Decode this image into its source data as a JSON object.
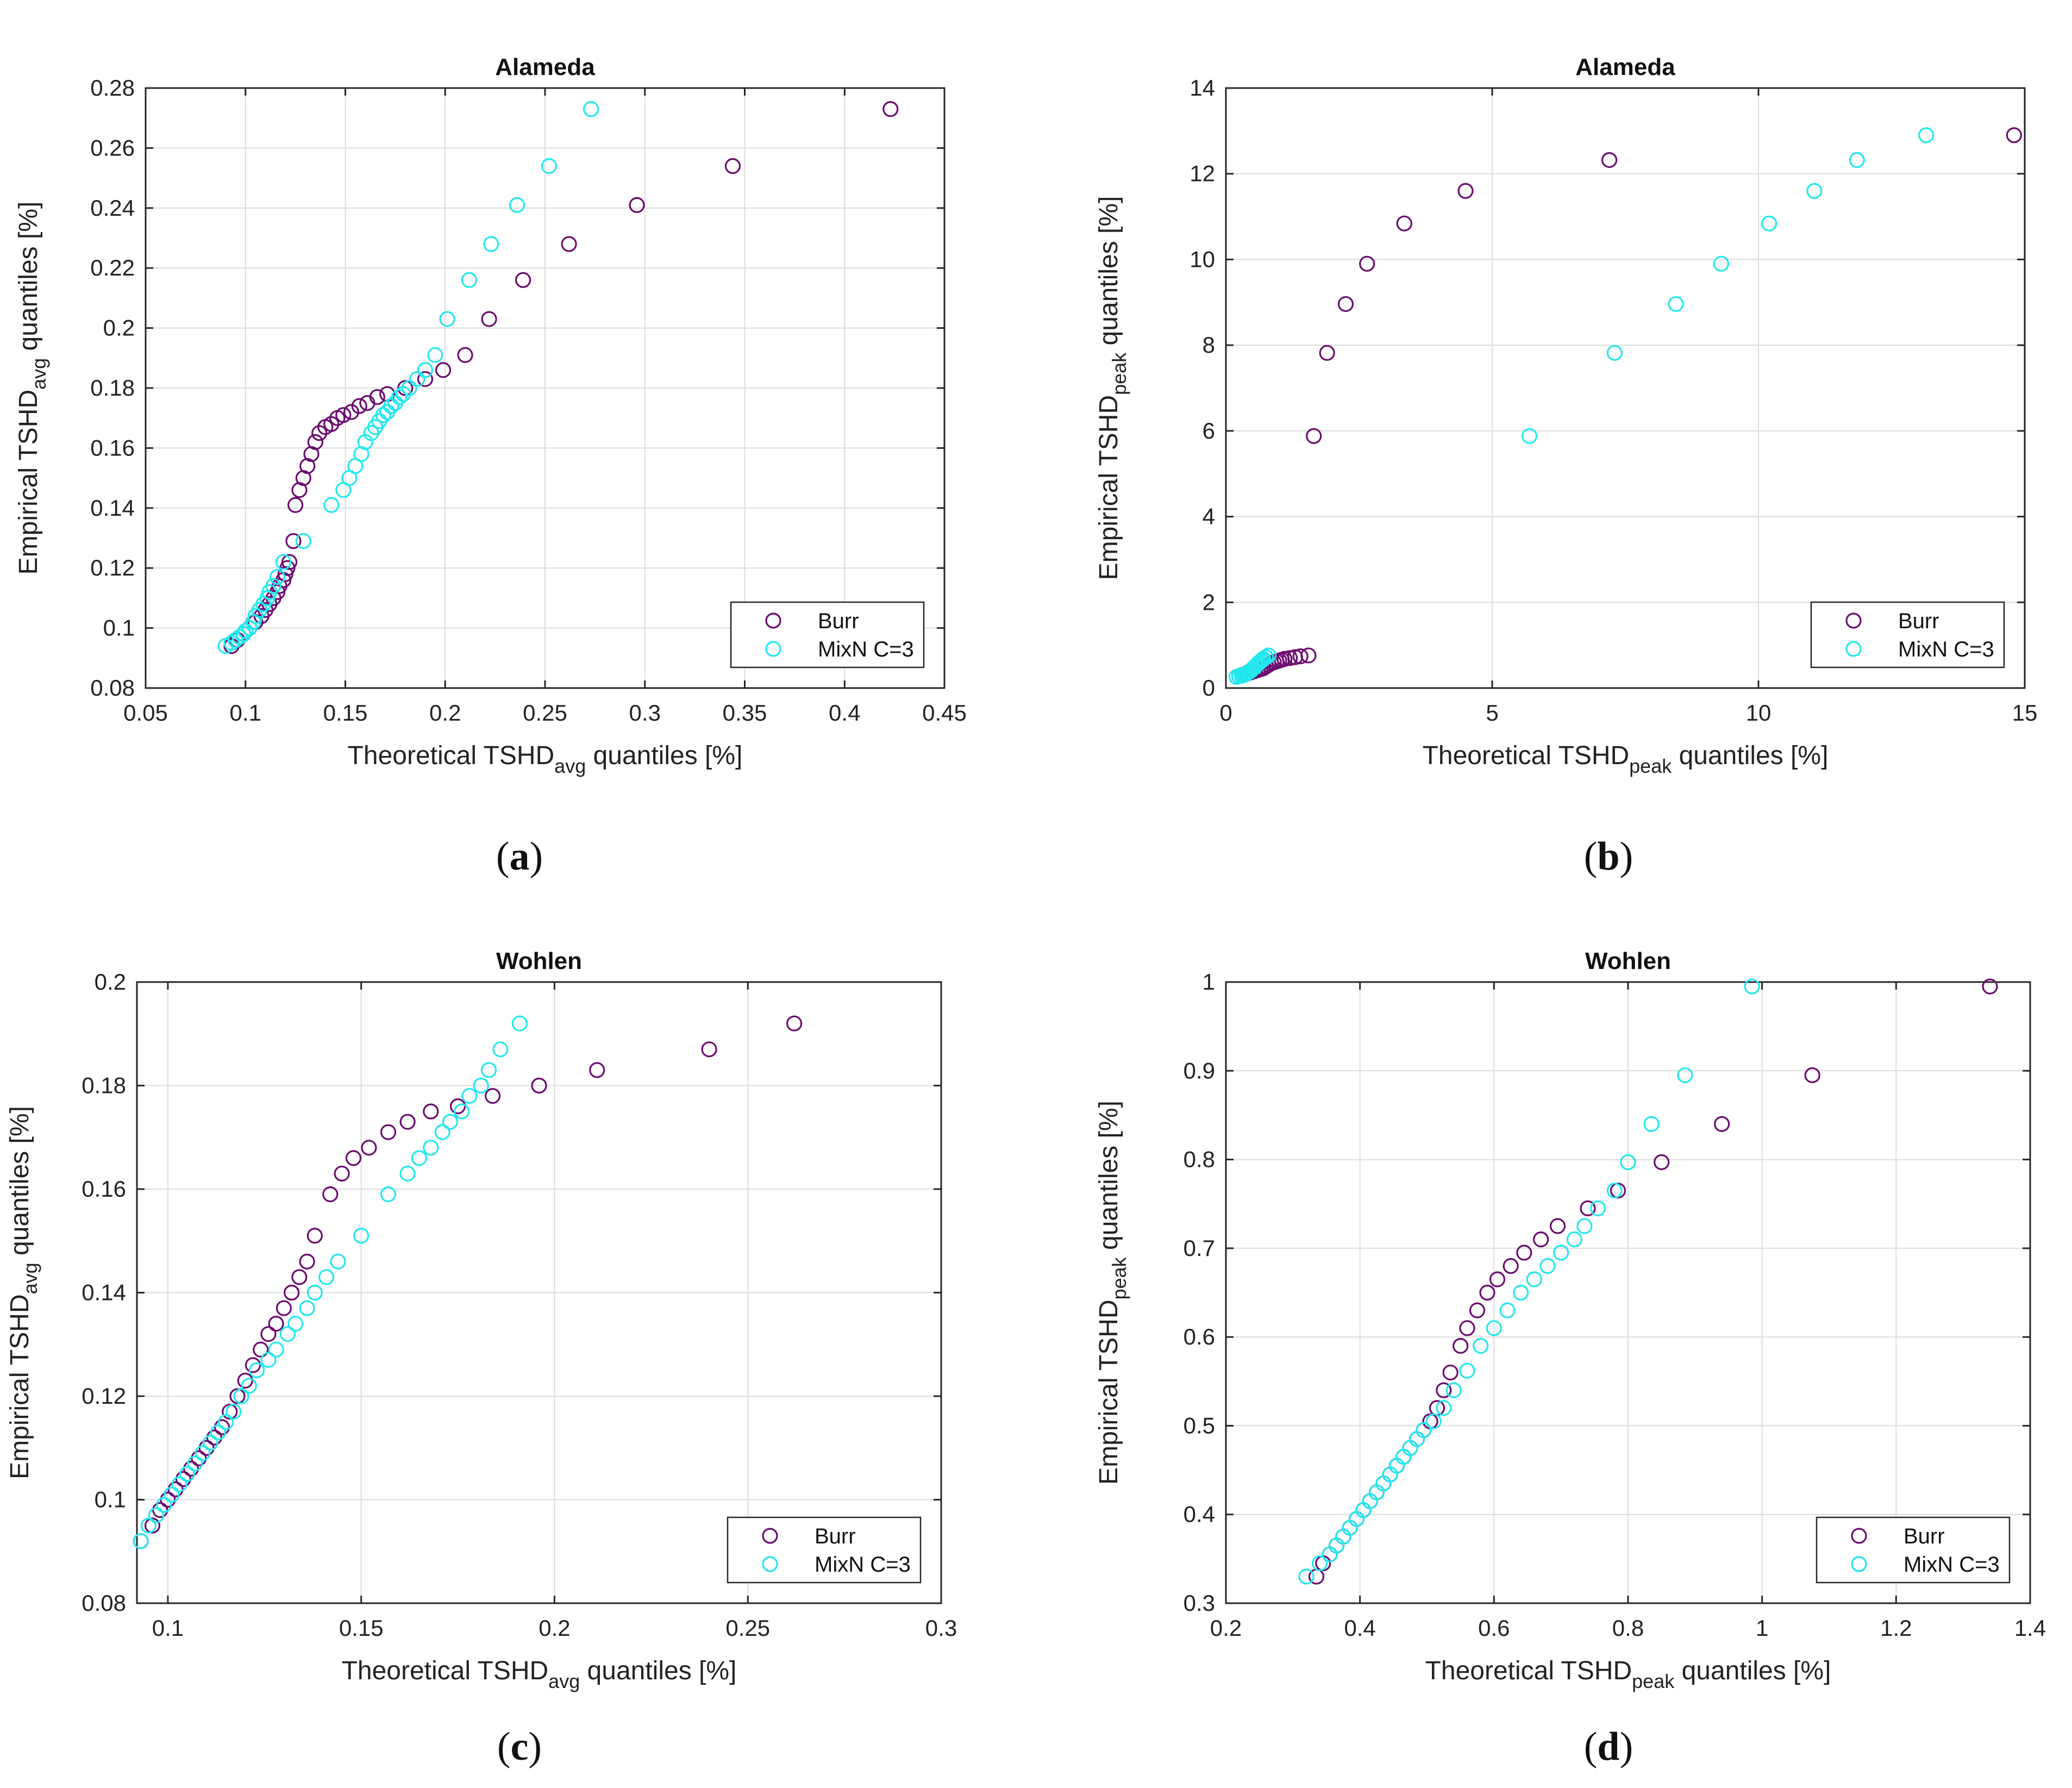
{
  "colors": {
    "burr": "#6a0a6e",
    "mixn": "#22e8ee",
    "grid": "#dcdcdc",
    "axis": "#262626"
  },
  "chart_data": [
    {
      "type": "scatter",
      "label": "(a)",
      "title": "Alameda",
      "xlabel": {
        "main": "Theoretical TSHD",
        "sub": "avg",
        "tail": "quantiles [%]"
      },
      "ylabel": {
        "main": "Empirical TSHD",
        "sub": "avg",
        "tail": "quantiles [%]"
      },
      "xlim": [
        0.05,
        0.45
      ],
      "ylim": [
        0.08,
        0.28
      ],
      "xticks": [
        0.05,
        0.1,
        0.15,
        0.2,
        0.25,
        0.3,
        0.35,
        0.4,
        0.45
      ],
      "xtick_labels": [
        "0.05",
        "0.1",
        "0.15",
        "0.2",
        "0.25",
        "0.3",
        "0.35",
        "0.4",
        "0.45"
      ],
      "yticks": [
        0.08,
        0.1,
        0.12,
        0.14,
        0.16,
        0.18,
        0.2,
        0.22,
        0.24,
        0.26,
        0.28
      ],
      "ytick_labels": [
        "0.08",
        "0.1",
        "0.12",
        "0.14",
        "0.16",
        "0.18",
        "0.2",
        "0.22",
        "0.24",
        "0.26",
        "0.28"
      ],
      "grid": true,
      "legend_position": "bottom-right",
      "series": [
        {
          "name": "Burr",
          "x": [
            0.093,
            0.096,
            0.099,
            0.102,
            0.105,
            0.108,
            0.11,
            0.112,
            0.114,
            0.116,
            0.117,
            0.119,
            0.12,
            0.121,
            0.122,
            0.124,
            0.125,
            0.127,
            0.129,
            0.131,
            0.133,
            0.135,
            0.137,
            0.14,
            0.143,
            0.146,
            0.149,
            0.153,
            0.157,
            0.161,
            0.166,
            0.171,
            0.18,
            0.19,
            0.199,
            0.21,
            0.222,
            0.239,
            0.262,
            0.296,
            0.344,
            0.423
          ],
          "y": [
            0.094,
            0.096,
            0.098,
            0.1,
            0.102,
            0.104,
            0.106,
            0.108,
            0.11,
            0.112,
            0.114,
            0.116,
            0.118,
            0.12,
            0.122,
            0.129,
            0.141,
            0.146,
            0.15,
            0.154,
            0.158,
            0.162,
            0.165,
            0.167,
            0.168,
            0.17,
            0.171,
            0.172,
            0.174,
            0.175,
            0.177,
            0.178,
            0.18,
            0.183,
            0.186,
            0.191,
            0.203,
            0.216,
            0.228,
            0.241,
            0.254,
            0.273
          ]
        },
        {
          "name": "MixN C=3",
          "x": [
            0.09,
            0.093,
            0.095,
            0.097,
            0.099,
            0.1,
            0.102,
            0.104,
            0.105,
            0.107,
            0.109,
            0.111,
            0.112,
            0.114,
            0.116,
            0.119,
            0.129,
            0.143,
            0.149,
            0.152,
            0.155,
            0.158,
            0.16,
            0.163,
            0.165,
            0.167,
            0.169,
            0.171,
            0.173,
            0.175,
            0.177,
            0.179,
            0.182,
            0.186,
            0.19,
            0.195,
            0.201,
            0.212,
            0.223,
            0.236,
            0.252,
            0.273
          ],
          "y": [
            0.094,
            0.095,
            0.096,
            0.097,
            0.098,
            0.099,
            0.1,
            0.102,
            0.104,
            0.106,
            0.108,
            0.11,
            0.112,
            0.114,
            0.117,
            0.122,
            0.129,
            0.141,
            0.146,
            0.15,
            0.154,
            0.158,
            0.162,
            0.165,
            0.167,
            0.169,
            0.171,
            0.172,
            0.174,
            0.175,
            0.177,
            0.178,
            0.18,
            0.183,
            0.186,
            0.191,
            0.203,
            0.216,
            0.228,
            0.241,
            0.254,
            0.273
          ]
        }
      ]
    },
    {
      "type": "scatter",
      "label": "(b)",
      "title": "Alameda",
      "xlabel": {
        "main": "Theoretical TSHD",
        "sub": "peak",
        "tail": "quantiles [%]"
      },
      "ylabel": {
        "main": "Empirical TSHD",
        "sub": "peak",
        "tail": "quantiles [%]"
      },
      "xlim": [
        0,
        15
      ],
      "ylim": [
        0,
        14
      ],
      "xticks": [
        0,
        5,
        10,
        15
      ],
      "xtick_labels": [
        "0",
        "5",
        "10",
        "15"
      ],
      "yticks": [
        0,
        2,
        4,
        6,
        8,
        10,
        12,
        14
      ],
      "ytick_labels": [
        "0",
        "2",
        "4",
        "6",
        "8",
        "10",
        "12",
        "14"
      ],
      "grid": true,
      "legend_position": "bottom-right",
      "series": [
        {
          "name": "Burr",
          "x": [
            0.25,
            0.3,
            0.35,
            0.4,
            0.45,
            0.5,
            0.55,
            0.6,
            0.65,
            0.7,
            0.75,
            0.8,
            0.85,
            0.9,
            0.95,
            1.0,
            1.05,
            1.1,
            1.2,
            1.3,
            1.4,
            1.55,
            1.65,
            1.9,
            2.25,
            2.65,
            3.35,
            4.5,
            7.2,
            14.8
          ],
          "y": [
            0.28,
            0.3,
            0.32,
            0.34,
            0.36,
            0.38,
            0.4,
            0.42,
            0.44,
            0.46,
            0.5,
            0.54,
            0.58,
            0.6,
            0.62,
            0.64,
            0.66,
            0.68,
            0.7,
            0.72,
            0.74,
            0.76,
            5.88,
            7.82,
            8.96,
            9.9,
            10.84,
            11.6,
            12.32,
            12.9
          ]
        },
        {
          "name": "MixN C=3",
          "x": [
            0.2,
            0.25,
            0.3,
            0.32,
            0.35,
            0.37,
            0.4,
            0.42,
            0.45,
            0.47,
            0.5,
            0.52,
            0.55,
            0.57,
            0.6,
            0.62,
            0.65,
            0.68,
            0.7,
            0.75,
            0.8,
            5.7,
            7.3,
            8.45,
            9.3,
            10.2,
            11.05,
            11.85,
            13.15
          ],
          "y": [
            0.26,
            0.28,
            0.29,
            0.3,
            0.31,
            0.33,
            0.35,
            0.37,
            0.39,
            0.41,
            0.44,
            0.47,
            0.5,
            0.53,
            0.56,
            0.59,
            0.62,
            0.65,
            0.68,
            0.72,
            0.76,
            5.88,
            7.82,
            8.96,
            9.9,
            10.84,
            11.6,
            12.32,
            12.9
          ]
        }
      ]
    },
    {
      "type": "scatter",
      "label": "(c)",
      "title": "Wohlen",
      "xlabel": {
        "main": "Theoretical TSHD",
        "sub": "avg",
        "tail": "quantiles [%]"
      },
      "ylabel": {
        "main": "Empirical TSHD",
        "sub": "avg",
        "tail": "quantiles [%]"
      },
      "xlim": [
        0.092,
        0.3
      ],
      "ylim": [
        0.08,
        0.2
      ],
      "xticks": [
        0.1,
        0.15,
        0.2,
        0.25,
        0.3
      ],
      "xtick_labels": [
        "0.1",
        "0.15",
        "0.2",
        "0.25",
        "0.3"
      ],
      "yticks": [
        0.08,
        0.1,
        0.12,
        0.14,
        0.16,
        0.18,
        0.2
      ],
      "ytick_labels": [
        "0.08",
        "0.1",
        "0.12",
        "0.14",
        "0.16",
        "0.18",
        "0.2"
      ],
      "grid": true,
      "legend_position": "bottom-right",
      "series": [
        {
          "name": "Burr",
          "x": [
            0.093,
            0.096,
            0.098,
            0.1,
            0.102,
            0.104,
            0.106,
            0.108,
            0.11,
            0.112,
            0.114,
            0.116,
            0.118,
            0.12,
            0.122,
            0.124,
            0.126,
            0.128,
            0.13,
            0.132,
            0.134,
            0.136,
            0.138,
            0.142,
            0.145,
            0.148,
            0.152,
            0.157,
            0.162,
            0.168,
            0.175,
            0.184,
            0.196,
            0.211,
            0.24,
            0.262
          ],
          "y": [
            0.092,
            0.095,
            0.098,
            0.1,
            0.102,
            0.104,
            0.106,
            0.108,
            0.11,
            0.112,
            0.114,
            0.117,
            0.12,
            0.123,
            0.126,
            0.129,
            0.132,
            0.134,
            0.137,
            0.14,
            0.143,
            0.146,
            0.151,
            0.159,
            0.163,
            0.166,
            0.168,
            0.171,
            0.173,
            0.175,
            0.176,
            0.178,
            0.18,
            0.183,
            0.187,
            0.192
          ]
        },
        {
          "name": "MixN C=3",
          "x": [
            0.093,
            0.095,
            0.097,
            0.099,
            0.101,
            0.103,
            0.105,
            0.107,
            0.109,
            0.111,
            0.113,
            0.115,
            0.117,
            0.119,
            0.121,
            0.123,
            0.126,
            0.128,
            0.131,
            0.133,
            0.136,
            0.138,
            0.141,
            0.144,
            0.15,
            0.157,
            0.162,
            0.165,
            0.168,
            0.171,
            0.173,
            0.176,
            0.178,
            0.181,
            0.183,
            0.186,
            0.191
          ],
          "y": [
            0.092,
            0.095,
            0.097,
            0.099,
            0.101,
            0.103,
            0.105,
            0.107,
            0.109,
            0.111,
            0.113,
            0.115,
            0.117,
            0.12,
            0.122,
            0.125,
            0.127,
            0.129,
            0.132,
            0.134,
            0.137,
            0.14,
            0.143,
            0.146,
            0.151,
            0.159,
            0.163,
            0.166,
            0.168,
            0.171,
            0.173,
            0.175,
            0.178,
            0.18,
            0.183,
            0.187,
            0.192
          ]
        }
      ]
    },
    {
      "type": "scatter",
      "label": "(d)",
      "title": "Wohlen",
      "xlabel": {
        "main": "Theoretical TSHD",
        "sub": "peak",
        "tail": "quantiles [%]"
      },
      "ylabel": {
        "main": "Empirical TSHD",
        "sub": "peak",
        "tail": "quantiles [%]"
      },
      "xlim": [
        0.2,
        1.4
      ],
      "ylim": [
        0.3,
        1.0
      ],
      "xticks": [
        0.2,
        0.4,
        0.6,
        0.8,
        1.0,
        1.2,
        1.4
      ],
      "xtick_labels": [
        "0.2",
        "0.4",
        "0.6",
        "0.8",
        "1",
        "1.2",
        "1.4"
      ],
      "yticks": [
        0.3,
        0.4,
        0.5,
        0.6,
        0.7,
        0.8,
        0.9,
        1.0
      ],
      "ytick_labels": [
        "0.3",
        "0.4",
        "0.5",
        "0.6",
        "0.7",
        "0.8",
        "0.9",
        "1"
      ],
      "grid": true,
      "legend_position": "bottom-right",
      "series": [
        {
          "name": "Burr",
          "x": [
            0.335,
            0.345,
            0.355,
            0.365,
            0.375,
            0.385,
            0.395,
            0.405,
            0.415,
            0.425,
            0.435,
            0.445,
            0.455,
            0.465,
            0.475,
            0.485,
            0.495,
            0.505,
            0.515,
            0.525,
            0.535,
            0.55,
            0.56,
            0.575,
            0.59,
            0.605,
            0.625,
            0.645,
            0.67,
            0.695,
            0.74,
            0.785,
            0.85,
            0.94,
            1.075,
            1.34
          ],
          "y": [
            0.33,
            0.345,
            0.355,
            0.365,
            0.375,
            0.385,
            0.395,
            0.405,
            0.415,
            0.425,
            0.435,
            0.445,
            0.455,
            0.465,
            0.475,
            0.485,
            0.495,
            0.505,
            0.52,
            0.54,
            0.56,
            0.59,
            0.61,
            0.63,
            0.65,
            0.665,
            0.68,
            0.695,
            0.71,
            0.725,
            0.745,
            0.765,
            0.797,
            0.84,
            0.895,
            0.995
          ]
        },
        {
          "name": "MixN C=3",
          "x": [
            0.32,
            0.34,
            0.355,
            0.365,
            0.375,
            0.385,
            0.395,
            0.405,
            0.415,
            0.425,
            0.435,
            0.445,
            0.455,
            0.465,
            0.475,
            0.485,
            0.495,
            0.51,
            0.525,
            0.54,
            0.56,
            0.58,
            0.6,
            0.62,
            0.64,
            0.66,
            0.68,
            0.7,
            0.72,
            0.735,
            0.755,
            0.78,
            0.8,
            0.835,
            0.885,
            0.985
          ],
          "y": [
            0.33,
            0.345,
            0.355,
            0.365,
            0.375,
            0.385,
            0.395,
            0.405,
            0.415,
            0.425,
            0.435,
            0.445,
            0.455,
            0.465,
            0.475,
            0.485,
            0.495,
            0.505,
            0.52,
            0.54,
            0.562,
            0.59,
            0.61,
            0.63,
            0.65,
            0.665,
            0.68,
            0.695,
            0.71,
            0.725,
            0.745,
            0.765,
            0.797,
            0.84,
            0.895,
            0.995
          ]
        }
      ]
    }
  ]
}
